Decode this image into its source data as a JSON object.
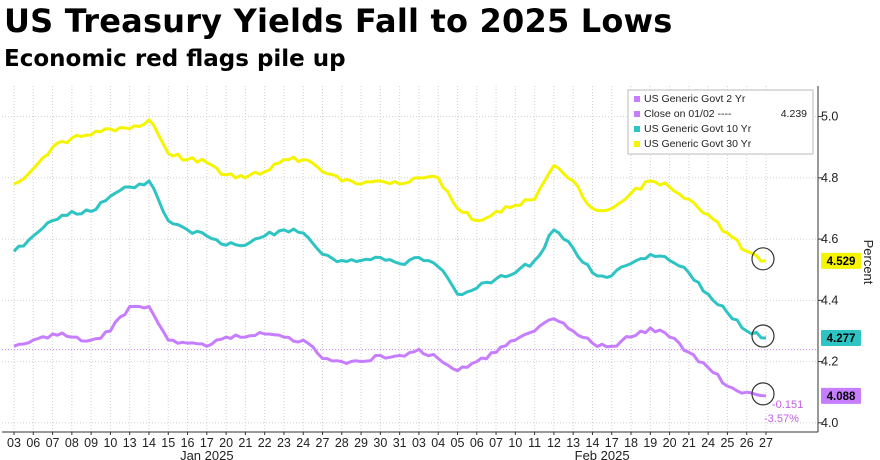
{
  "title": "US Treasury Yields Fall to 2025 Lows",
  "subtitle": "Economic red flags pile up",
  "chart_data": {
    "type": "line",
    "ylabel": "Percent",
    "ylim": [
      3.97,
      5.1
    ],
    "yticks": [
      "4.0",
      "4.2",
      "4.4",
      "4.6",
      "4.8",
      "5.0"
    ],
    "x": [
      "03",
      "06",
      "07",
      "08",
      "09",
      "10",
      "13",
      "14",
      "15",
      "16",
      "17",
      "20",
      "21",
      "22",
      "23",
      "24",
      "27",
      "28",
      "29",
      "30",
      "31",
      "03",
      "04",
      "05",
      "06",
      "07",
      "10",
      "11",
      "12",
      "13",
      "14",
      "17",
      "18",
      "19",
      "20",
      "21",
      "24",
      "25",
      "26",
      "27"
    ],
    "month_labels": [
      {
        "label": "Jan 2025",
        "index": 10
      },
      {
        "label": "Feb 2025",
        "index": 30.5
      }
    ],
    "grid": true,
    "legend_position": "top-right",
    "legend": [
      {
        "label": "US Generic Govt 2 Yr",
        "color": "#c77dff"
      },
      {
        "label": "Close on 01/02 ----",
        "value": "4.239",
        "color": "#c77dff"
      },
      {
        "label": "US Generic Govt 10 Yr",
        "color": "#2ec4c4"
      },
      {
        "label": "US Generic Govt 30 Yr",
        "color": "#f5f500"
      }
    ],
    "reference_line": {
      "label": "Close on 01/02",
      "value": 4.239
    },
    "series": [
      {
        "name": "US Generic Govt 30 Yr",
        "color": "#f5f500",
        "last_label": "4.529",
        "values": [
          4.78,
          4.83,
          4.9,
          4.93,
          4.94,
          4.96,
          4.96,
          4.99,
          4.88,
          4.86,
          4.85,
          4.81,
          4.8,
          4.82,
          4.86,
          4.86,
          4.82,
          4.79,
          4.78,
          4.79,
          4.78,
          4.8,
          4.8,
          4.7,
          4.66,
          4.69,
          4.71,
          4.73,
          4.84,
          4.79,
          4.7,
          4.7,
          4.75,
          4.79,
          4.77,
          4.73,
          4.68,
          4.62,
          4.56,
          4.529
        ]
      },
      {
        "name": "US Generic Govt 10 Yr",
        "color": "#2ec4c4",
        "last_label": "4.277",
        "values": [
          4.56,
          4.61,
          4.66,
          4.69,
          4.69,
          4.74,
          4.77,
          4.79,
          4.66,
          4.63,
          4.61,
          4.58,
          4.58,
          4.61,
          4.63,
          4.62,
          4.55,
          4.53,
          4.53,
          4.54,
          4.52,
          4.54,
          4.51,
          4.42,
          4.44,
          4.47,
          4.49,
          4.53,
          4.63,
          4.57,
          4.49,
          4.48,
          4.52,
          4.55,
          4.53,
          4.49,
          4.42,
          4.36,
          4.3,
          4.277
        ]
      },
      {
        "name": "US Generic Govt 2 Yr",
        "color": "#c77dff",
        "last_label": "4.088",
        "values": [
          4.25,
          4.27,
          4.29,
          4.28,
          4.27,
          4.3,
          4.38,
          4.38,
          4.27,
          4.26,
          4.25,
          4.28,
          4.28,
          4.29,
          4.28,
          4.27,
          4.21,
          4.2,
          4.2,
          4.22,
          4.22,
          4.24,
          4.21,
          4.17,
          4.2,
          4.23,
          4.27,
          4.3,
          4.34,
          4.3,
          4.26,
          4.25,
          4.28,
          4.31,
          4.28,
          4.23,
          4.18,
          4.12,
          4.1,
          4.088
        ]
      }
    ],
    "change_annotation": {
      "abs": "-0.151",
      "pct": "-3.57%"
    }
  }
}
